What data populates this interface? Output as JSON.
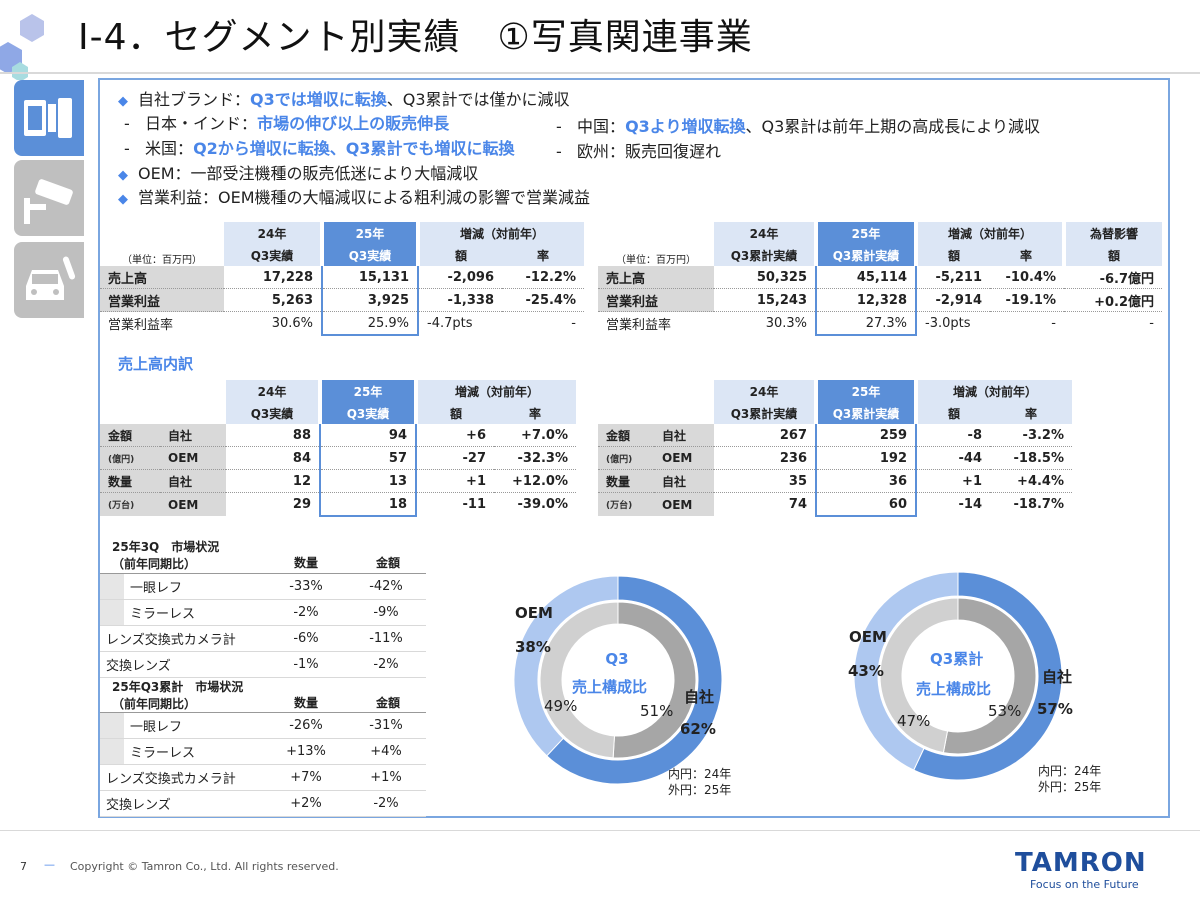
{
  "title": "Ⅰ-4．セグメント別実績　①写真関連事業",
  "bullets": {
    "b1_pre": "自社ブランド：",
    "b1_hl": "Q3では増収に転換",
    "b1_post": "、Q3累計では僅かに減収",
    "jp_pre": "日本・インド：",
    "jp_hl": "市場の伸び以上の販売伸長",
    "us_pre": "米国：",
    "us_hl": "Q2から増収に転換、Q3累計でも増収に転換",
    "cn_pre": "中国：",
    "cn_hl": "Q3より増収転換",
    "cn_post": "、Q3累計は前年上期の高成長により減収",
    "eu": "欧州：販売回復遅れ",
    "oem": "OEM：一部受注機種の販売低迷により大幅減収",
    "op": "営業利益：OEM機種の大幅減収による粗利減の影響で営業減益",
    "dash": "-"
  },
  "q3": {
    "unit": "（単位：百万円）",
    "h1": "24年",
    "h1b": "Q3実績",
    "h2": "25年",
    "h2b": "Q3実績",
    "h3": "増減（対前年）",
    "h3a": "額",
    "h3b": "率",
    "rows": [
      {
        "label": "売上高",
        "a": "17,228",
        "b": "15,131",
        "c": "-2,096",
        "d": "-12.2%"
      },
      {
        "label": "営業利益",
        "a": "5,263",
        "b": "3,925",
        "c": "-1,338",
        "d": "-25.4%"
      },
      {
        "label": "営業利益率",
        "a": "30.6%",
        "b": "25.9%",
        "c": "-4.7pts",
        "d": "-"
      }
    ]
  },
  "cum": {
    "unit": "（単位：百万円）",
    "h1": "24年",
    "h1b": "Q3累計実績",
    "h2": "25年",
    "h2b": "Q3累計実績",
    "h3": "増減（対前年）",
    "h3a": "額",
    "h3b": "率",
    "h4": "為替影響",
    "h4a": "額",
    "rows": [
      {
        "label": "売上高",
        "a": "50,325",
        "b": "45,114",
        "c": "-5,211",
        "d": "-10.4%",
        "e": "-6.7億円"
      },
      {
        "label": "営業利益",
        "a": "15,243",
        "b": "12,328",
        "c": "-2,914",
        "d": "-19.1%",
        "e": "+0.2億円"
      },
      {
        "label": "営業利益率",
        "a": "30.3%",
        "b": "27.3%",
        "c": "-3.0pts",
        "d": "-",
        "e": "-"
      }
    ]
  },
  "breakdown_title": "売上高内訳",
  "bd_q3": {
    "h1": "24年",
    "h1b": "Q3実績",
    "h2": "25年",
    "h2b": "Q3実績",
    "h3": "増減（対前年）",
    "h3a": "額",
    "h3b": "率",
    "rows": [
      {
        "g": "金額",
        "s": "自社",
        "a": "88",
        "b": "94",
        "c": "+6",
        "d": "+7.0%"
      },
      {
        "g": "(億円)",
        "s": "OEM",
        "a": "84",
        "b": "57",
        "c": "-27",
        "d": "-32.3%"
      },
      {
        "g": "数量",
        "s": "自社",
        "a": "12",
        "b": "13",
        "c": "+1",
        "d": "+12.0%"
      },
      {
        "g": "(万台)",
        "s": "OEM",
        "a": "29",
        "b": "18",
        "c": "-11",
        "d": "-39.0%"
      }
    ]
  },
  "bd_cum": {
    "h1": "24年",
    "h1b": "Q3累計実績",
    "h2": "25年",
    "h2b": "Q3累計実績",
    "h3": "増減（対前年）",
    "h3a": "額",
    "h3b": "率",
    "rows": [
      {
        "g": "金額",
        "s": "自社",
        "a": "267",
        "b": "259",
        "c": "-8",
        "d": "-3.2%"
      },
      {
        "g": "(億円)",
        "s": "OEM",
        "a": "236",
        "b": "192",
        "c": "-44",
        "d": "-18.5%"
      },
      {
        "g": "数量",
        "s": "自社",
        "a": "35",
        "b": "36",
        "c": "+1",
        "d": "+4.4%"
      },
      {
        "g": "(万台)",
        "s": "OEM",
        "a": "74",
        "b": "60",
        "c": "-14",
        "d": "-18.7%"
      }
    ]
  },
  "market_q3": {
    "title1": "25年3Q　市場状況",
    "title2": "（前年同期比）",
    "c1": "数量",
    "c2": "金額",
    "rows": [
      {
        "label": "一眼レフ",
        "a": "-33%",
        "b": "-42%",
        "indent": true
      },
      {
        "label": "ミラーレス",
        "a": "-2%",
        "b": "-9%",
        "indent": true
      },
      {
        "label": "レンズ交換式カメラ計",
        "a": "-6%",
        "b": "-11%",
        "indent": false
      },
      {
        "label": "交換レンズ",
        "a": "-1%",
        "b": "-2%",
        "indent": false
      }
    ]
  },
  "market_cum": {
    "title1": "25年Q3累計　市場状況",
    "title2": "（前年同期比）",
    "c1": "数量",
    "c2": "金額",
    "rows": [
      {
        "label": "一眼レフ",
        "a": "-26%",
        "b": "-31%",
        "indent": true
      },
      {
        "label": "ミラーレス",
        "a": "+13%",
        "b": "+4%",
        "indent": true
      },
      {
        "label": "レンズ交換式カメラ計",
        "a": "+7%",
        "b": "+1%",
        "indent": false
      },
      {
        "label": "交換レンズ",
        "a": "+2%",
        "b": "-2%",
        "indent": false
      }
    ]
  },
  "chart_data": [
    {
      "type": "pie",
      "title": "Q3 売上構成比",
      "title1": "Q3",
      "title2": "売上構成比",
      "series": [
        {
          "name": "内円：24年",
          "labels": [
            "自社",
            "OEM"
          ],
          "values": [
            51,
            49
          ]
        },
        {
          "name": "外円：25年",
          "labels": [
            "自社",
            "OEM"
          ],
          "values": [
            62,
            38
          ]
        }
      ],
      "inner_own": "51%",
      "inner_oem": "49%",
      "outer_own": "62%",
      "outer_oem": "38%",
      "own_label": "自社",
      "oem_label": "OEM",
      "legend1": "内円：24年",
      "legend2": "外円：25年"
    },
    {
      "type": "pie",
      "title": "Q3累計 売上構成比",
      "title1": "Q3累計",
      "title2": "売上構成比",
      "series": [
        {
          "name": "内円：24年",
          "labels": [
            "自社",
            "OEM"
          ],
          "values": [
            53,
            47
          ]
        },
        {
          "name": "外円：25年",
          "labels": [
            "自社",
            "OEM"
          ],
          "values": [
            57,
            43
          ]
        }
      ],
      "inner_own": "53%",
      "inner_oem": "47%",
      "outer_own": "57%",
      "outer_oem": "43%",
      "own_label": "自社",
      "oem_label": "OEM",
      "legend1": "内円：24年",
      "legend2": "外円：25年"
    }
  ],
  "colors": {
    "accent": "#4a86e8",
    "outer_own": "#5b8fd8",
    "outer_oem": "#aec8f0",
    "inner_own": "#a6a6a6",
    "inner_oem": "#d0d0d0"
  },
  "footer": {
    "page": "7",
    "dash": "—",
    "copyright": "Copyright © Tamron Co., Ltd. All rights reserved.",
    "logo": "TAMRON",
    "tagline": "Focus on the Future"
  }
}
